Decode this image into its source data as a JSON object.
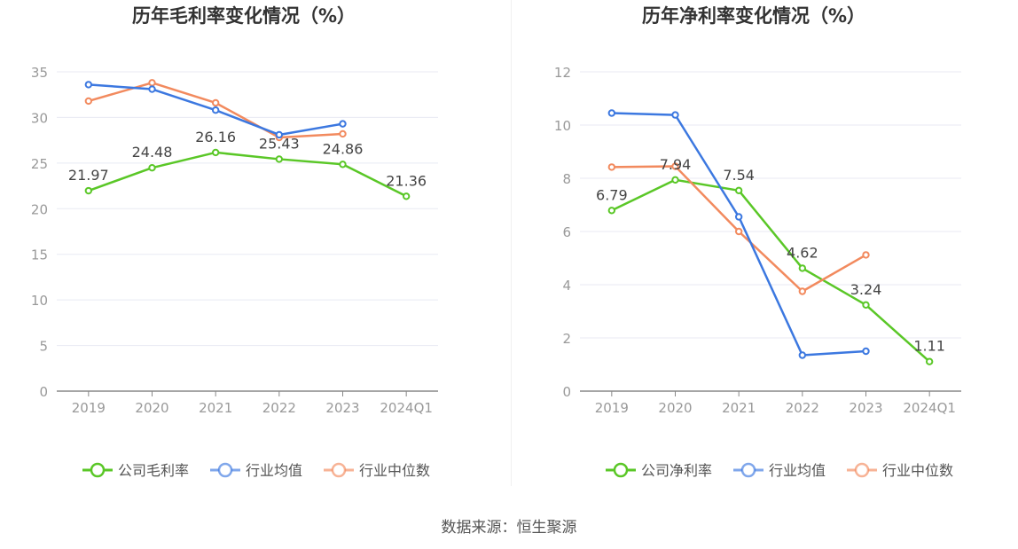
{
  "source": "数据来源：恒生聚源",
  "colors": {
    "company": "#5ac727",
    "industry_avg": "#3c78e0",
    "industry_median": "#f28a5e",
    "axis": "#999999",
    "grid": "#e8eaf3",
    "label": "#444444"
  },
  "chart_data": [
    {
      "type": "line",
      "title": "历年毛利率变化情况（%）",
      "categories": [
        "2019",
        "2020",
        "2021",
        "2022",
        "2023",
        "2024Q1"
      ],
      "ylim": [
        0,
        35
      ],
      "yticks": [
        "0",
        "5",
        "10",
        "15",
        "20",
        "25",
        "30",
        "35"
      ],
      "legend_position": "bottom",
      "series": [
        {
          "name": "公司毛利率",
          "key": "company",
          "values": [
            21.97,
            24.48,
            26.16,
            25.43,
            24.86,
            21.36
          ],
          "labels": [
            "21.97",
            "24.48",
            "26.16",
            "25.43",
            "24.86",
            "21.36"
          ]
        },
        {
          "name": "行业均值",
          "key": "industry_avg",
          "values": [
            33.6,
            33.1,
            30.8,
            28.1,
            29.3,
            null
          ]
        },
        {
          "name": "行业中位数",
          "key": "industry_median",
          "values": [
            31.8,
            33.8,
            31.6,
            27.8,
            28.2,
            null
          ]
        }
      ]
    },
    {
      "type": "line",
      "title": "历年净利率变化情况（%）",
      "categories": [
        "2019",
        "2020",
        "2021",
        "2022",
        "2023",
        "2024Q1"
      ],
      "ylim": [
        0,
        12
      ],
      "yticks": [
        "0",
        "2",
        "4",
        "6",
        "8",
        "10",
        "12"
      ],
      "legend_position": "bottom",
      "series": [
        {
          "name": "公司净利率",
          "key": "company",
          "values": [
            6.79,
            7.94,
            7.54,
            4.62,
            3.24,
            1.11
          ],
          "labels": [
            "6.79",
            "7.94",
            "7.54",
            "4.62",
            "3.24",
            "1.11"
          ]
        },
        {
          "name": "行业均值",
          "key": "industry_avg",
          "values": [
            10.45,
            10.38,
            6.55,
            1.35,
            1.5,
            null
          ]
        },
        {
          "name": "行业中位数",
          "key": "industry_median",
          "values": [
            8.42,
            8.45,
            6.0,
            3.75,
            5.12,
            null
          ]
        }
      ]
    }
  ]
}
